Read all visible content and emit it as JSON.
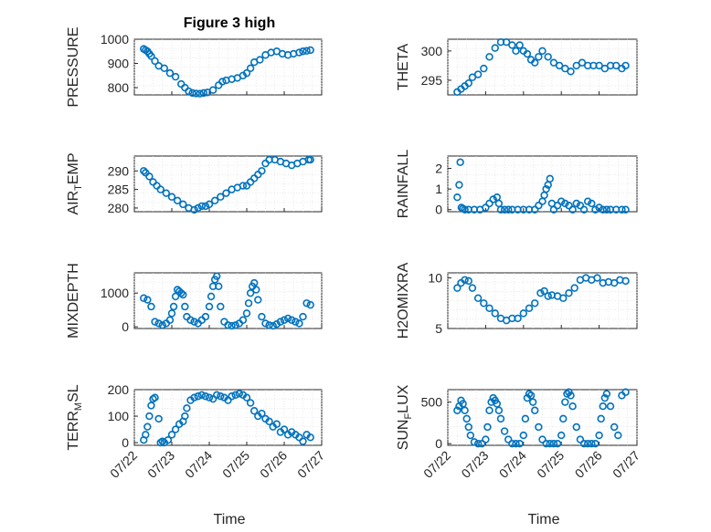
{
  "figure_title": "Figure 3 high",
  "colors": {
    "marker": "#0072BD",
    "axis": "#262626"
  },
  "chart_data": [
    {
      "type": "scatter",
      "ylabel": "PRESSURE",
      "title": "Figure 3 high",
      "xlim": [
        0,
        5
      ],
      "x_tick_labels": [
        "07/22",
        "07/23",
        "07/24",
        "07/25",
        "07/26",
        "07/27"
      ],
      "ylim": [
        770,
        1000
      ],
      "y_ticks": [
        800,
        900,
        1000
      ],
      "grid": true,
      "x": [
        0.25,
        0.3,
        0.35,
        0.4,
        0.45,
        0.55,
        0.65,
        0.8,
        0.95,
        1.1,
        1.25,
        1.35,
        1.45,
        1.55,
        1.65,
        1.75,
        1.85,
        1.95,
        2.1,
        2.25,
        2.35,
        2.45,
        2.6,
        2.75,
        2.9,
        3.0,
        3.1,
        3.2,
        3.35,
        3.5,
        3.65,
        3.8,
        3.95,
        4.1,
        4.25,
        4.4,
        4.5,
        4.6,
        4.7
      ],
      "y": [
        960,
        955,
        950,
        940,
        930,
        910,
        890,
        880,
        860,
        845,
        815,
        800,
        785,
        778,
        776,
        775,
        778,
        780,
        790,
        810,
        825,
        830,
        835,
        840,
        850,
        860,
        880,
        905,
        915,
        935,
        945,
        950,
        940,
        935,
        940,
        945,
        950,
        952,
        955
      ]
    },
    {
      "type": "scatter",
      "ylabel": "THETA",
      "xlim": [
        0,
        5
      ],
      "x_tick_labels": [
        "07/22",
        "07/23",
        "07/24",
        "07/25",
        "07/26",
        "07/27"
      ],
      "ylim": [
        292.5,
        302
      ],
      "y_ticks": [
        295,
        300
      ],
      "grid": true,
      "x": [
        0.25,
        0.35,
        0.45,
        0.55,
        0.65,
        0.8,
        0.95,
        1.1,
        1.25,
        1.4,
        1.55,
        1.7,
        1.8,
        1.9,
        2.0,
        2.1,
        2.2,
        2.3,
        2.4,
        2.5,
        2.65,
        2.8,
        2.95,
        3.1,
        3.25,
        3.4,
        3.55,
        3.7,
        3.85,
        4.0,
        4.15,
        4.3,
        4.45,
        4.6,
        4.7
      ],
      "y": [
        293,
        293.5,
        294,
        294.5,
        295.5,
        296,
        297,
        299,
        300.5,
        301.5,
        301.5,
        301,
        300,
        301,
        300,
        299.5,
        298.5,
        298,
        299,
        300,
        299,
        298,
        297.5,
        297,
        296.5,
        297.5,
        298,
        297.5,
        297.5,
        297.5,
        297,
        297.5,
        297.5,
        297,
        297.5
      ]
    },
    {
      "type": "scatter",
      "ylabel": "AIR_TEMP",
      "xlim": [
        0,
        5
      ],
      "x_tick_labels": [
        "07/22",
        "07/23",
        "07/24",
        "07/25",
        "07/26",
        "07/27"
      ],
      "ylim": [
        279,
        294
      ],
      "y_ticks": [
        280,
        285,
        290
      ],
      "grid": true,
      "x": [
        0.25,
        0.3,
        0.4,
        0.5,
        0.6,
        0.7,
        0.85,
        1.0,
        1.15,
        1.3,
        1.45,
        1.6,
        1.7,
        1.8,
        1.9,
        2.0,
        2.15,
        2.3,
        2.45,
        2.6,
        2.75,
        2.9,
        3.0,
        3.1,
        3.2,
        3.3,
        3.4,
        3.5,
        3.6,
        3.75,
        3.9,
        4.05,
        4.2,
        4.35,
        4.5,
        4.65,
        4.7
      ],
      "y": [
        290,
        289.5,
        288.5,
        287,
        286,
        285,
        284,
        283,
        282,
        281,
        280,
        279.5,
        280,
        280.5,
        280.5,
        281,
        282,
        283,
        284,
        285,
        285.5,
        286,
        286,
        287,
        288,
        289,
        290,
        292,
        293,
        293,
        292.5,
        292,
        291.5,
        292,
        292.5,
        293,
        293
      ]
    },
    {
      "type": "scatter",
      "ylabel": "RAINFALL",
      "xlim": [
        0,
        5
      ],
      "x_tick_labels": [
        "07/22",
        "07/23",
        "07/24",
        "07/25",
        "07/26",
        "07/27"
      ],
      "ylim": [
        -0.1,
        2.6
      ],
      "y_ticks": [
        0,
        1,
        2
      ],
      "grid": true,
      "x": [
        0.25,
        0.3,
        0.33,
        0.36,
        0.4,
        0.45,
        0.55,
        0.7,
        0.85,
        1.0,
        1.1,
        1.2,
        1.3,
        1.35,
        1.4,
        1.5,
        1.6,
        1.7,
        1.85,
        2.0,
        2.15,
        2.3,
        2.4,
        2.5,
        2.55,
        2.6,
        2.65,
        2.7,
        2.75,
        2.8,
        2.9,
        3.0,
        3.1,
        3.2,
        3.3,
        3.4,
        3.5,
        3.6,
        3.7,
        3.8,
        3.9,
        4.0,
        4.1,
        4.2,
        4.3,
        4.45,
        4.6,
        4.7
      ],
      "y": [
        0.6,
        1.2,
        2.3,
        0.1,
        0.05,
        0,
        0,
        0,
        0,
        0.1,
        0.3,
        0.5,
        0.6,
        0.3,
        0,
        0,
        0,
        0,
        0,
        0,
        0,
        0,
        0.2,
        0.4,
        0.7,
        1.0,
        1.2,
        1.5,
        0.3,
        0,
        0.2,
        0.4,
        0.3,
        0.2,
        0,
        0.3,
        0.2,
        0,
        0.4,
        0.3,
        0,
        0.1,
        0,
        0,
        0,
        0,
        0,
        0
      ]
    },
    {
      "type": "scatter",
      "ylabel": "MIXDEPTH",
      "xlim": [
        0,
        5
      ],
      "x_tick_labels": [
        "07/22",
        "07/23",
        "07/24",
        "07/25",
        "07/26",
        "07/27"
      ],
      "ylim": [
        -50,
        1600
      ],
      "y_ticks": [
        0,
        1000
      ],
      "grid": true,
      "x": [
        0.25,
        0.35,
        0.45,
        0.55,
        0.65,
        0.75,
        0.85,
        0.95,
        1.0,
        1.05,
        1.1,
        1.15,
        1.2,
        1.25,
        1.3,
        1.35,
        1.4,
        1.5,
        1.6,
        1.7,
        1.8,
        1.9,
        2.0,
        2.05,
        2.1,
        2.15,
        2.2,
        2.25,
        2.3,
        2.4,
        2.5,
        2.6,
        2.7,
        2.8,
        2.9,
        3.0,
        3.05,
        3.1,
        3.15,
        3.2,
        3.25,
        3.3,
        3.4,
        3.5,
        3.6,
        3.7,
        3.8,
        3.9,
        4.0,
        4.1,
        4.2,
        4.3,
        4.4,
        4.5,
        4.6,
        4.7
      ],
      "y": [
        850,
        800,
        600,
        150,
        100,
        50,
        100,
        200,
        400,
        600,
        900,
        1100,
        1050,
        1000,
        950,
        600,
        300,
        200,
        150,
        100,
        200,
        300,
        600,
        900,
        1200,
        1400,
        1500,
        1200,
        600,
        150,
        50,
        30,
        50,
        100,
        200,
        400,
        700,
        1000,
        1200,
        1300,
        1100,
        800,
        300,
        100,
        50,
        30,
        80,
        150,
        200,
        250,
        200,
        150,
        100,
        300,
        700,
        650
      ]
    },
    {
      "type": "scatter",
      "ylabel": "H2OMIXRA",
      "xlim": [
        0,
        5
      ],
      "x_tick_labels": [
        "07/22",
        "07/23",
        "07/24",
        "07/25",
        "07/26",
        "07/27"
      ],
      "ylim": [
        5,
        10.5
      ],
      "y_ticks": [
        5,
        10
      ],
      "grid": true,
      "x": [
        0.25,
        0.35,
        0.45,
        0.55,
        0.65,
        0.8,
        0.95,
        1.1,
        1.25,
        1.4,
        1.55,
        1.7,
        1.85,
        2.0,
        2.15,
        2.3,
        2.45,
        2.55,
        2.65,
        2.75,
        2.9,
        3.05,
        3.2,
        3.35,
        3.5,
        3.65,
        3.8,
        3.95,
        4.1,
        4.25,
        4.4,
        4.55,
        4.7
      ],
      "y": [
        9,
        9.5,
        9.8,
        9.7,
        9,
        8,
        7.5,
        7,
        6.5,
        6,
        5.8,
        6,
        6,
        6.5,
        7,
        7.5,
        8.5,
        8.7,
        8.2,
        8.3,
        8.2,
        8,
        8.5,
        9,
        9.8,
        10,
        9.8,
        10,
        9.5,
        9.6,
        9.5,
        9.8,
        9.7
      ]
    },
    {
      "type": "scatter",
      "ylabel": "TERR_MSL",
      "xlim": [
        0,
        5
      ],
      "x_tick_labels": [
        "07/22",
        "07/23",
        "07/24",
        "07/25",
        "07/26",
        "07/27"
      ],
      "ylim": [
        -10,
        200
      ],
      "y_ticks": [
        0,
        100,
        200
      ],
      "grid": true,
      "x": [
        0.25,
        0.3,
        0.35,
        0.4,
        0.45,
        0.5,
        0.55,
        0.65,
        0.7,
        0.75,
        0.8,
        0.9,
        1.0,
        1.1,
        1.2,
        1.3,
        1.35,
        1.4,
        1.5,
        1.6,
        1.7,
        1.8,
        1.9,
        2.0,
        2.1,
        2.2,
        2.3,
        2.4,
        2.5,
        2.6,
        2.7,
        2.8,
        2.9,
        3.0,
        3.1,
        3.2,
        3.3,
        3.4,
        3.5,
        3.6,
        3.7,
        3.8,
        3.9,
        4.0,
        4.1,
        4.2,
        4.3,
        4.4,
        4.5,
        4.6,
        4.7
      ],
      "y": [
        10,
        30,
        60,
        100,
        140,
        165,
        170,
        90,
        0,
        5,
        0,
        10,
        30,
        50,
        70,
        80,
        100,
        130,
        160,
        170,
        175,
        180,
        175,
        170,
        165,
        180,
        175,
        170,
        160,
        175,
        180,
        185,
        180,
        170,
        150,
        120,
        100,
        110,
        90,
        80,
        60,
        70,
        40,
        50,
        30,
        40,
        30,
        20,
        5,
        30,
        20
      ]
    },
    {
      "type": "scatter",
      "ylabel": "SUN_FLUX",
      "xlim": [
        0,
        5
      ],
      "x_tick_labels": [
        "07/22",
        "07/23",
        "07/24",
        "07/25",
        "07/26",
        "07/27"
      ],
      "ylim": [
        -20,
        650
      ],
      "y_ticks": [
        0,
        500
      ],
      "grid": true,
      "x": [
        0.25,
        0.3,
        0.35,
        0.4,
        0.45,
        0.5,
        0.55,
        0.6,
        0.7,
        0.8,
        0.9,
        1.0,
        1.05,
        1.1,
        1.15,
        1.2,
        1.25,
        1.3,
        1.35,
        1.4,
        1.5,
        1.6,
        1.7,
        1.8,
        1.9,
        2.0,
        2.05,
        2.1,
        2.15,
        2.2,
        2.25,
        2.3,
        2.4,
        2.5,
        2.6,
        2.7,
        2.8,
        2.9,
        3.0,
        3.05,
        3.1,
        3.15,
        3.2,
        3.25,
        3.3,
        3.4,
        3.5,
        3.6,
        3.7,
        3.8,
        3.9,
        4.0,
        4.05,
        4.1,
        4.15,
        4.2,
        4.3,
        4.4,
        4.5,
        4.6,
        4.7
      ],
      "y": [
        400,
        450,
        520,
        480,
        400,
        300,
        200,
        100,
        20,
        0,
        0,
        50,
        200,
        400,
        500,
        550,
        520,
        480,
        400,
        300,
        150,
        50,
        0,
        0,
        0,
        100,
        300,
        550,
        600,
        580,
        500,
        400,
        200,
        50,
        0,
        0,
        0,
        0,
        100,
        300,
        500,
        600,
        620,
        580,
        450,
        200,
        50,
        0,
        0,
        0,
        0,
        100,
        300,
        450,
        550,
        600,
        450,
        200,
        100,
        580,
        620
      ]
    }
  ],
  "x_axis_label": "Time"
}
